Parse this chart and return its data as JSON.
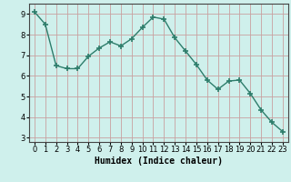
{
  "x": [
    0,
    1,
    2,
    3,
    4,
    5,
    6,
    7,
    8,
    9,
    10,
    11,
    12,
    13,
    14,
    15,
    16,
    17,
    18,
    19,
    20,
    21,
    22,
    23
  ],
  "y": [
    9.1,
    8.5,
    6.5,
    6.35,
    6.35,
    6.95,
    7.35,
    7.65,
    7.45,
    7.8,
    8.35,
    8.85,
    8.75,
    7.85,
    7.2,
    6.55,
    5.8,
    5.35,
    5.75,
    5.8,
    5.15,
    4.35,
    3.75,
    3.3
  ],
  "line_color": "#2d7d6b",
  "marker": "+",
  "markersize": 4,
  "markeredgewidth": 1.2,
  "linewidth": 1.0,
  "xlabel": "Humidex (Indice chaleur)",
  "xlabel_fontsize": 7,
  "bg_color": "#cff0ec",
  "grid_color_v": "#c8a0a0",
  "grid_color_h": "#c8a0a0",
  "xlim": [
    -0.5,
    23.5
  ],
  "ylim": [
    2.8,
    9.5
  ],
  "yticks": [
    3,
    4,
    5,
    6,
    7,
    8,
    9
  ],
  "xticks": [
    0,
    1,
    2,
    3,
    4,
    5,
    6,
    7,
    8,
    9,
    10,
    11,
    12,
    13,
    14,
    15,
    16,
    17,
    18,
    19,
    20,
    21,
    22,
    23
  ],
  "tick_fontsize": 6
}
